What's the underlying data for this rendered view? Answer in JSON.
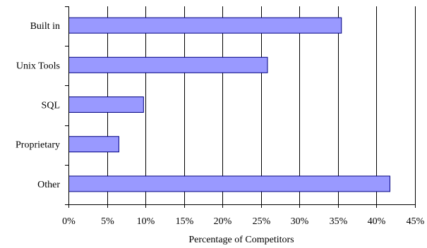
{
  "chart_data": {
    "type": "bar",
    "orientation": "horizontal",
    "categories": [
      "Built in",
      "Unix Tools",
      "SQL",
      "Proprietary",
      "Other"
    ],
    "values": [
      35.4,
      25.8,
      9.7,
      6.5,
      41.7
    ],
    "xlabel": "Percentage of Competitors",
    "ylabel": "",
    "xlim": [
      0,
      45
    ],
    "x_ticks": [
      "0%",
      "5%",
      "10%",
      "15%",
      "20%",
      "25%",
      "30%",
      "35%",
      "40%",
      "45%"
    ],
    "grid": "vertical",
    "legend": "none",
    "bar_color": "#9999ff",
    "bar_edge_color": "#000080"
  }
}
